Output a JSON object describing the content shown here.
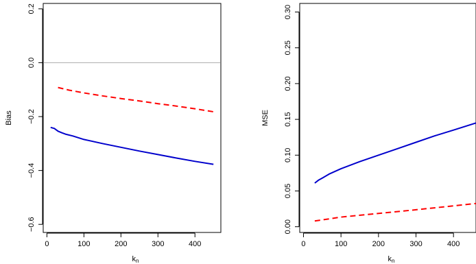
{
  "chart_data": [
    {
      "type": "line",
      "xlabel": "kn",
      "ylabel": "Bias",
      "xlim": [
        -10,
        470
      ],
      "ylim": [
        -0.63,
        0.22
      ],
      "xticks": [
        0,
        100,
        200,
        300,
        400
      ],
      "yticks": [
        -0.6,
        -0.4,
        -0.2,
        0.0,
        0.2
      ],
      "ytick_labels": [
        "−0.6",
        "−0.4",
        "−0.2",
        "0.0",
        "0.2"
      ],
      "reference_line": {
        "y": 0,
        "color": "#b0b0b0"
      },
      "series": [
        {
          "color": "#ff0000",
          "style": "dashed",
          "x": [
            30,
            60,
            100,
            150,
            200,
            250,
            300,
            350,
            400,
            450
          ],
          "y": [
            -0.092,
            -0.102,
            -0.112,
            -0.123,
            -0.133,
            -0.142,
            -0.152,
            -0.161,
            -0.171,
            -0.182
          ]
        },
        {
          "color": "#0000cc",
          "style": "solid",
          "x": [
            10,
            20,
            30,
            40,
            50,
            70,
            100,
            150,
            200,
            250,
            300,
            350,
            400,
            450
          ],
          "y": [
            -0.24,
            -0.244,
            -0.254,
            -0.26,
            -0.265,
            -0.272,
            -0.285,
            -0.3,
            -0.314,
            -0.328,
            -0.341,
            -0.354,
            -0.366,
            -0.377
          ]
        }
      ]
    },
    {
      "type": "line",
      "xlabel": "kn",
      "ylabel": "MSE",
      "xlim": [
        -10,
        460
      ],
      "ylim": [
        -0.008,
        0.312
      ],
      "xticks": [
        0,
        100,
        200,
        300,
        400
      ],
      "yticks": [
        0.0,
        0.05,
        0.1,
        0.15,
        0.2,
        0.25,
        0.3
      ],
      "ytick_labels": [
        "0.00",
        "0.05",
        "0.10",
        "0.15",
        "0.20",
        "0.25",
        "0.30"
      ],
      "series": [
        {
          "color": "#ff0000",
          "style": "dashed",
          "x": [
            30,
            100,
            200,
            300,
            400,
            460
          ],
          "y": [
            0.008,
            0.0135,
            0.0185,
            0.0237,
            0.0292,
            0.0325
          ]
        },
        {
          "color": "#0000cc",
          "style": "solid",
          "x": [
            30,
            40,
            50,
            70,
            100,
            150,
            200,
            250,
            300,
            350,
            400,
            460
          ],
          "y": [
            0.061,
            0.065,
            0.068,
            0.074,
            0.081,
            0.091,
            0.1,
            0.109,
            0.118,
            0.127,
            0.135,
            0.145
          ]
        }
      ]
    }
  ]
}
